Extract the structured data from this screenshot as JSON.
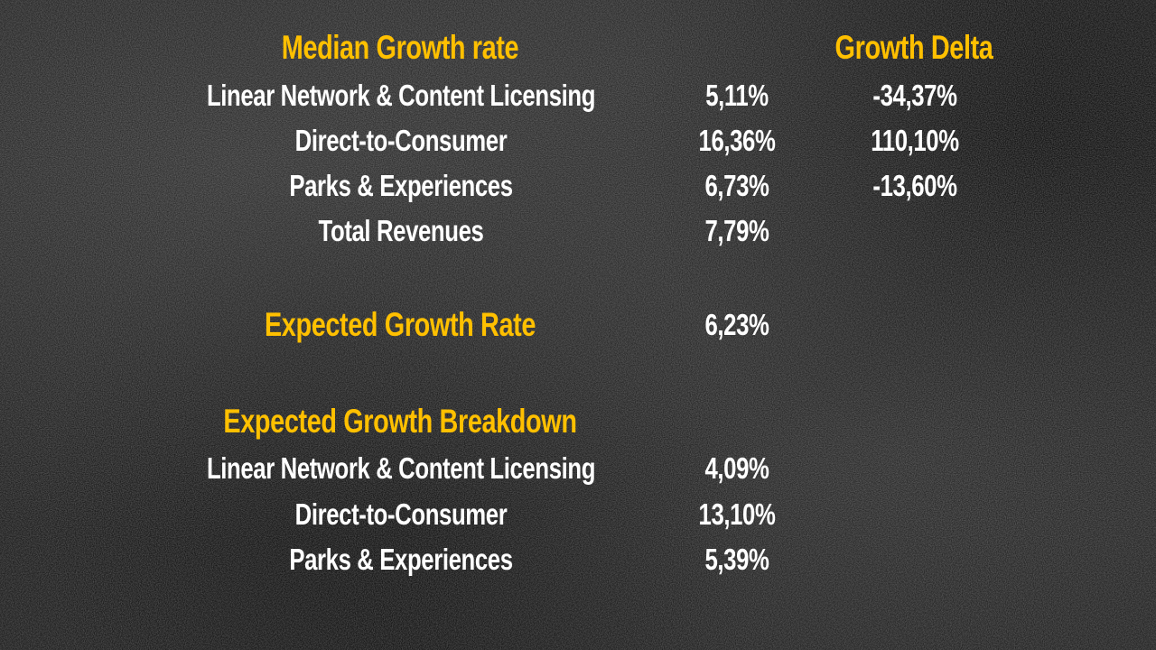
{
  "colors": {
    "heading": "#ffc000",
    "text": "#ffffff",
    "background": "#1b1b1b"
  },
  "median": {
    "heading": "Median Growth rate",
    "delta_heading": "Growth Delta",
    "rows": [
      {
        "label": "Linear Network & Content Licensing",
        "value": "5,11%",
        "delta": "-34,37%"
      },
      {
        "label": "Direct-to-Consumer",
        "value": "16,36%",
        "delta": "110,10%"
      },
      {
        "label": "Parks & Experiences",
        "value": "6,73%",
        "delta": "-13,60%"
      },
      {
        "label": "Total Revenues",
        "value": "7,79%"
      }
    ]
  },
  "expected": {
    "label": "Expected Growth Rate",
    "value": "6,23%"
  },
  "breakdown": {
    "heading": "Expected Growth Breakdown",
    "rows": [
      {
        "label": "Linear Network & Content Licensing",
        "value": "4,09%"
      },
      {
        "label": "Direct-to-Consumer",
        "value": "13,10%"
      },
      {
        "label": "Parks & Experiences",
        "value": "5,39%"
      }
    ]
  }
}
